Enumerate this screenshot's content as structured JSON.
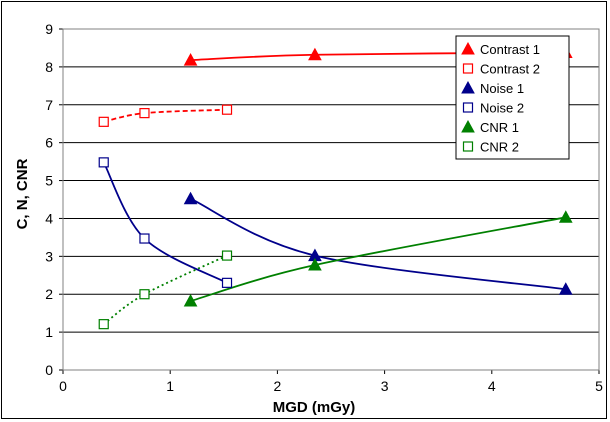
{
  "chart_data": {
    "type": "scatter",
    "xlabel": "MGD (mGy)",
    "ylabel": "C, N, CNR",
    "xlim": [
      0,
      5
    ],
    "ylim": [
      0,
      9
    ],
    "x_ticks": [
      "0",
      "1",
      "2",
      "3",
      "4",
      "5"
    ],
    "y_ticks": [
      "0",
      "1",
      "2",
      "3",
      "4",
      "5",
      "6",
      "7",
      "8",
      "9"
    ],
    "grid": "horizontal",
    "legend_position": "top-right",
    "series": [
      {
        "name": "Contrast 1",
        "marker": "triangle-filled",
        "color": "#ff0000",
        "line": "solid",
        "x": [
          1.19,
          2.35,
          4.69
        ],
        "y": [
          8.18,
          8.32,
          8.38
        ]
      },
      {
        "name": "Contrast 2",
        "marker": "square-open",
        "color": "#ff0000",
        "line": "dashed",
        "x": [
          0.38,
          0.76,
          1.53
        ],
        "y": [
          6.55,
          6.78,
          6.87
        ]
      },
      {
        "name": "Noise 1",
        "marker": "triangle-filled",
        "color": "#00008b",
        "line": "solid",
        "x": [
          1.19,
          2.35,
          4.69
        ],
        "y": [
          4.52,
          3.02,
          2.13
        ]
      },
      {
        "name": "Noise 2",
        "marker": "square-open",
        "color": "#00008b",
        "line": "solid",
        "x": [
          0.38,
          0.76,
          1.53
        ],
        "y": [
          5.48,
          3.47,
          2.3
        ]
      },
      {
        "name": "CNR 1",
        "marker": "triangle-filled",
        "color": "#008000",
        "line": "solid",
        "x": [
          1.19,
          2.35,
          4.69
        ],
        "y": [
          1.82,
          2.77,
          4.03
        ]
      },
      {
        "name": "CNR 2",
        "marker": "square-open",
        "color": "#008000",
        "line": "dotted",
        "x": [
          0.38,
          0.76,
          1.53
        ],
        "y": [
          1.21,
          2.0,
          3.02
        ]
      }
    ]
  }
}
